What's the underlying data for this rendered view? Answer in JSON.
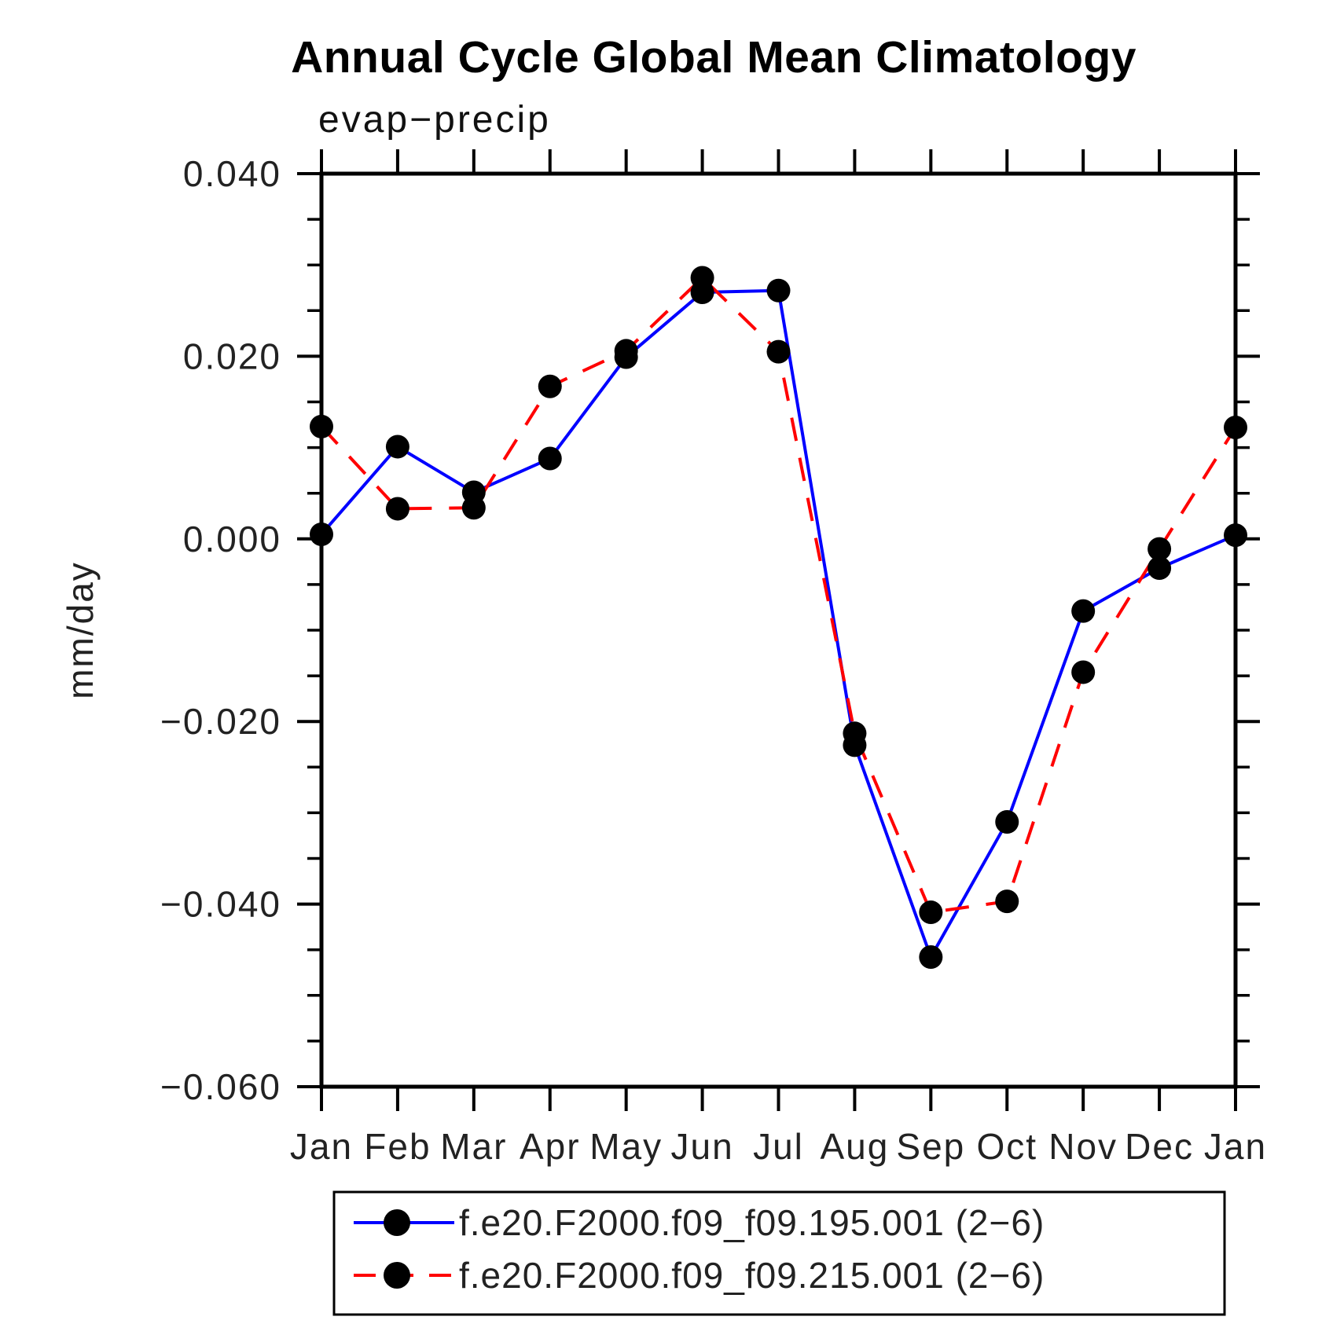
{
  "title": "Annual Cycle Global Mean Climatology",
  "chart_data": {
    "type": "line",
    "title": "Annual Cycle Global Mean Climatology",
    "subtitle": "evap−precip",
    "ylabel": "mm/day",
    "xlabel": "",
    "categories": [
      "Jan",
      "Feb",
      "Mar",
      "Apr",
      "May",
      "Jun",
      "Jul",
      "Aug",
      "Sep",
      "Oct",
      "Nov",
      "Dec",
      "Jan"
    ],
    "ylim": [
      -0.06,
      0.04
    ],
    "y_ticks": [
      0.04,
      0.02,
      0.0,
      -0.02,
      -0.04,
      -0.06
    ],
    "y_tick_labels": [
      "0.040",
      "0.020",
      "0.000",
      "−0.020",
      "−0.040",
      "−0.060"
    ],
    "y_minor_step": 0.005,
    "grid": false,
    "legend_position": "bottom",
    "marker_color": "#000000",
    "axis_color": "#000000",
    "series": [
      {
        "name": "f.e20.F2000.f09_f09.195.001 (2−6)",
        "color": "#0000ff",
        "style": "solid",
        "marker": "circle",
        "values": [
          0.0005,
          0.0101,
          0.0051,
          0.0088,
          0.0199,
          0.027,
          0.0272,
          -0.0226,
          -0.0458,
          -0.031,
          -0.0079,
          -0.0032,
          0.0004
        ]
      },
      {
        "name": "f.e20.F2000.f09_f09.215.001 (2−6)",
        "color": "#ff0000",
        "style": "dashed",
        "marker": "circle",
        "values": [
          0.0123,
          0.0033,
          0.0034,
          0.0167,
          0.0206,
          0.0286,
          0.0205,
          -0.0213,
          -0.0409,
          -0.0397,
          -0.0146,
          -0.0011,
          0.0122
        ]
      }
    ]
  }
}
